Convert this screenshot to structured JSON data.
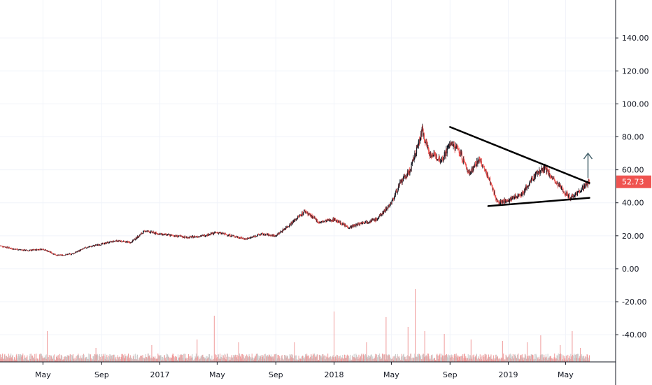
{
  "chart_data": {
    "type": "candlestick",
    "y_axis": {
      "ticks": [
        140,
        120,
        100,
        80,
        60,
        40,
        20,
        0,
        -20,
        -40
      ],
      "tick_labels": [
        "140.00",
        "120.00",
        "100.00",
        "80.00",
        "60.00",
        "40.00",
        "20.00",
        "0.00",
        "-20.00",
        "-40.00"
      ],
      "ylim": [
        -56.5,
        163
      ]
    },
    "x_axis": {
      "tick_labels": [
        "May",
        "Sep",
        "2017",
        "May",
        "Sep",
        "2018",
        "May",
        "Sep",
        "2019",
        "May"
      ],
      "tick_dates": [
        "2016-05-01",
        "2016-09-01",
        "2017-01-01",
        "2017-05-01",
        "2017-09-01",
        "2018-01-01",
        "2018-05-01",
        "2018-09-01",
        "2019-01-01",
        "2019-05-01"
      ],
      "xlim": [
        "2016-02-01",
        "2019-07-01"
      ]
    },
    "grid": true,
    "last_price": "52.73",
    "price_series": [
      [
        "2016-02-01",
        14
      ],
      [
        "2016-03-01",
        12
      ],
      [
        "2016-04-01",
        11
      ],
      [
        "2016-05-01",
        12
      ],
      [
        "2016-06-01",
        8
      ],
      [
        "2016-07-01",
        9
      ],
      [
        "2016-08-01",
        13
      ],
      [
        "2016-09-01",
        15
      ],
      [
        "2016-10-01",
        17
      ],
      [
        "2016-11-01",
        16
      ],
      [
        "2016-12-01",
        23
      ],
      [
        "2017-01-01",
        21
      ],
      [
        "2017-02-01",
        20
      ],
      [
        "2017-03-01",
        19
      ],
      [
        "2017-04-01",
        20
      ],
      [
        "2017-05-01",
        22
      ],
      [
        "2017-06-01",
        20
      ],
      [
        "2017-07-01",
        18
      ],
      [
        "2017-08-01",
        21
      ],
      [
        "2017-09-01",
        20
      ],
      [
        "2017-10-01",
        27
      ],
      [
        "2017-11-01",
        35
      ],
      [
        "2017-12-01",
        28
      ],
      [
        "2018-01-01",
        30
      ],
      [
        "2018-02-01",
        25
      ],
      [
        "2018-03-01",
        28
      ],
      [
        "2018-04-01",
        30
      ],
      [
        "2018-05-01",
        40
      ],
      [
        "2018-05-20",
        52
      ],
      [
        "2018-06-10",
        60
      ],
      [
        "2018-07-05",
        84
      ],
      [
        "2018-07-20",
        70
      ],
      [
        "2018-08-15",
        66
      ],
      [
        "2018-09-01",
        76
      ],
      [
        "2018-09-20",
        72
      ],
      [
        "2018-10-10",
        58
      ],
      [
        "2018-11-01",
        66
      ],
      [
        "2018-11-20",
        56
      ],
      [
        "2018-12-10",
        40
      ],
      [
        "2019-01-05",
        42
      ],
      [
        "2019-02-01",
        46
      ],
      [
        "2019-03-01",
        58
      ],
      [
        "2019-03-20",
        61
      ],
      [
        "2019-04-10",
        52
      ],
      [
        "2019-04-25",
        48
      ],
      [
        "2019-05-10",
        43
      ],
      [
        "2019-05-25",
        46
      ],
      [
        "2019-06-10",
        50
      ],
      [
        "2019-06-20",
        52.73
      ]
    ],
    "volume_spikes": [
      [
        "2016-05-10",
        22
      ],
      [
        "2016-08-20",
        10
      ],
      [
        "2016-12-15",
        12
      ],
      [
        "2017-03-20",
        16
      ],
      [
        "2017-04-25",
        33
      ],
      [
        "2017-06-15",
        14
      ],
      [
        "2017-10-10",
        14
      ],
      [
        "2018-01-01",
        36
      ],
      [
        "2018-03-10",
        14
      ],
      [
        "2018-04-20",
        32
      ],
      [
        "2018-06-05",
        25
      ],
      [
        "2018-06-20",
        52
      ],
      [
        "2018-07-10",
        22
      ],
      [
        "2018-08-20",
        20
      ],
      [
        "2018-10-15",
        16
      ],
      [
        "2018-12-20",
        15
      ],
      [
        "2019-02-10",
        14
      ],
      [
        "2019-03-10",
        19
      ],
      [
        "2019-04-20",
        12
      ],
      [
        "2019-05-15",
        22
      ],
      [
        "2019-06-01",
        10
      ]
    ],
    "trendlines": [
      {
        "from": [
          "2018-09-01",
          86
        ],
        "to": [
          "2019-06-20",
          52
        ]
      },
      {
        "from": [
          "2018-11-20",
          38
        ],
        "to": [
          "2019-06-20",
          43
        ]
      }
    ],
    "arrow": {
      "from": [
        "2019-06-20",
        55
      ],
      "to": [
        "2019-06-20",
        70
      ]
    },
    "colors": {
      "up": "#131722",
      "down": "#ef5350",
      "volume_down": "#ef9a9a",
      "volume_up": "#c8c8c8",
      "grid": "#f0f3fa",
      "last_price_tag": "#ef5350",
      "trendline": "#000000",
      "arrow": "#4a6670",
      "axis_border": "#131722"
    }
  }
}
